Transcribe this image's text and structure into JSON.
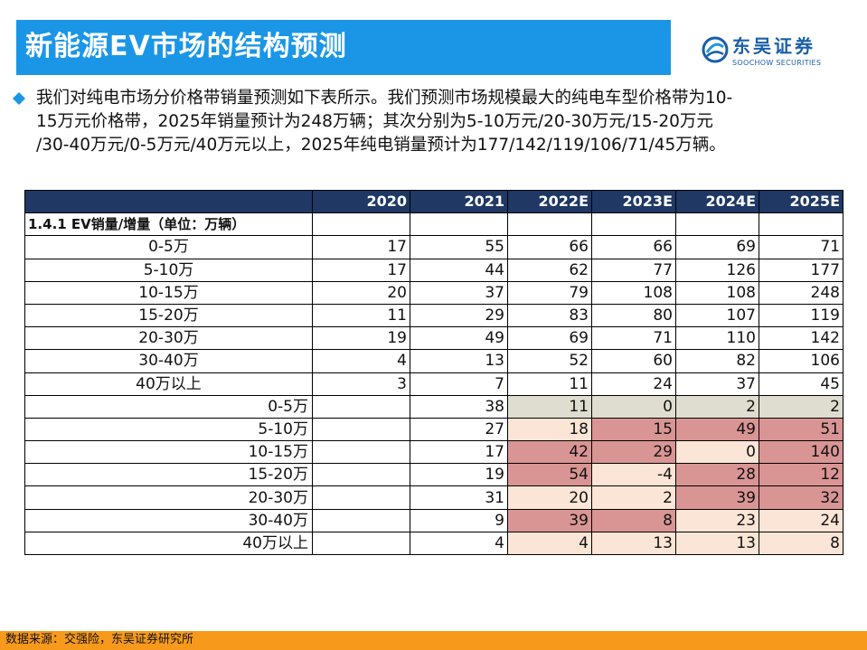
{
  "header": {
    "title": "新能源EV市场的结构预测",
    "logo_cn": "东吴证券",
    "logo_en": "SOOCHOW SECURITIES",
    "logo_icon": "soochow-logo-icon",
    "bar_color": "#1b96e6"
  },
  "summary": {
    "bullet_icon": "diamond-bullet-icon",
    "lines": [
      "我们对纯电市场分价格带销量预测如下表所示。我们预测市场规模最大的纯电车型价格带为10-",
      "15万元价格带，2025年销量预计为248万辆；其次分别为5-10万元/20-30万元/15-20万元",
      "/30-40万元/0-5万元/40万元以上，2025年纯电销量预计为177/142/119/106/71/45万辆。"
    ]
  },
  "table": {
    "header_color": "#1f3864",
    "columns": [
      "",
      "2020",
      "2021",
      "2022E",
      "2023E",
      "2024E",
      "2025E"
    ],
    "section_label": "1.4.1 EV销量/增量（单位：万辆）",
    "sales_rows": [
      {
        "label": "0-5万",
        "values": [
          "17",
          "55",
          "66",
          "66",
          "69",
          "71"
        ]
      },
      {
        "label": "5-10万",
        "values": [
          "17",
          "44",
          "62",
          "77",
          "126",
          "177"
        ]
      },
      {
        "label": "10-15万",
        "values": [
          "20",
          "37",
          "79",
          "108",
          "108",
          "248"
        ]
      },
      {
        "label": "15-20万",
        "values": [
          "11",
          "29",
          "83",
          "80",
          "107",
          "119"
        ]
      },
      {
        "label": "20-30万",
        "values": [
          "19",
          "49",
          "69",
          "71",
          "110",
          "142"
        ]
      },
      {
        "label": "30-40万",
        "values": [
          "4",
          "13",
          "52",
          "60",
          "82",
          "106"
        ]
      },
      {
        "label": "40万以上",
        "values": [
          "3",
          "7",
          "11",
          "24",
          "37",
          "45"
        ]
      }
    ],
    "increment_rows": [
      {
        "label": "0-5万",
        "values": [
          "",
          "38",
          "11",
          "0",
          "2",
          "2"
        ],
        "heat": [
          "n",
          "n",
          "g",
          "g",
          "g",
          "g"
        ]
      },
      {
        "label": "5-10万",
        "values": [
          "",
          "27",
          "18",
          "15",
          "49",
          "51"
        ],
        "heat": [
          "n",
          "n",
          "l",
          "r",
          "r",
          "r"
        ]
      },
      {
        "label": "10-15万",
        "values": [
          "",
          "17",
          "42",
          "29",
          "0",
          "140"
        ],
        "heat": [
          "n",
          "n",
          "r",
          "r",
          "l",
          "r"
        ]
      },
      {
        "label": "15-20万",
        "values": [
          "",
          "19",
          "54",
          "-4",
          "28",
          "12"
        ],
        "heat": [
          "n",
          "n",
          "r",
          "l",
          "r",
          "r"
        ]
      },
      {
        "label": "20-30万",
        "values": [
          "",
          "31",
          "20",
          "2",
          "39",
          "32"
        ],
        "heat": [
          "n",
          "n",
          "l",
          "l",
          "r",
          "r"
        ]
      },
      {
        "label": "30-40万",
        "values": [
          "",
          "9",
          "39",
          "8",
          "23",
          "24"
        ],
        "heat": [
          "n",
          "n",
          "r",
          "r",
          "l",
          "l"
        ]
      },
      {
        "label": "40万以上",
        "values": [
          "",
          "4",
          "4",
          "13",
          "13",
          "8"
        ],
        "heat": [
          "n",
          "n",
          "l",
          "l",
          "l",
          "l"
        ]
      }
    ],
    "heat_colors": {
      "gray": "#deddd0",
      "light": "#fbe5d6",
      "red": "#d99594"
    }
  },
  "footer": {
    "source": "数据来源：交强险，东吴证券研究所",
    "bar_color": "#f79a1c"
  }
}
